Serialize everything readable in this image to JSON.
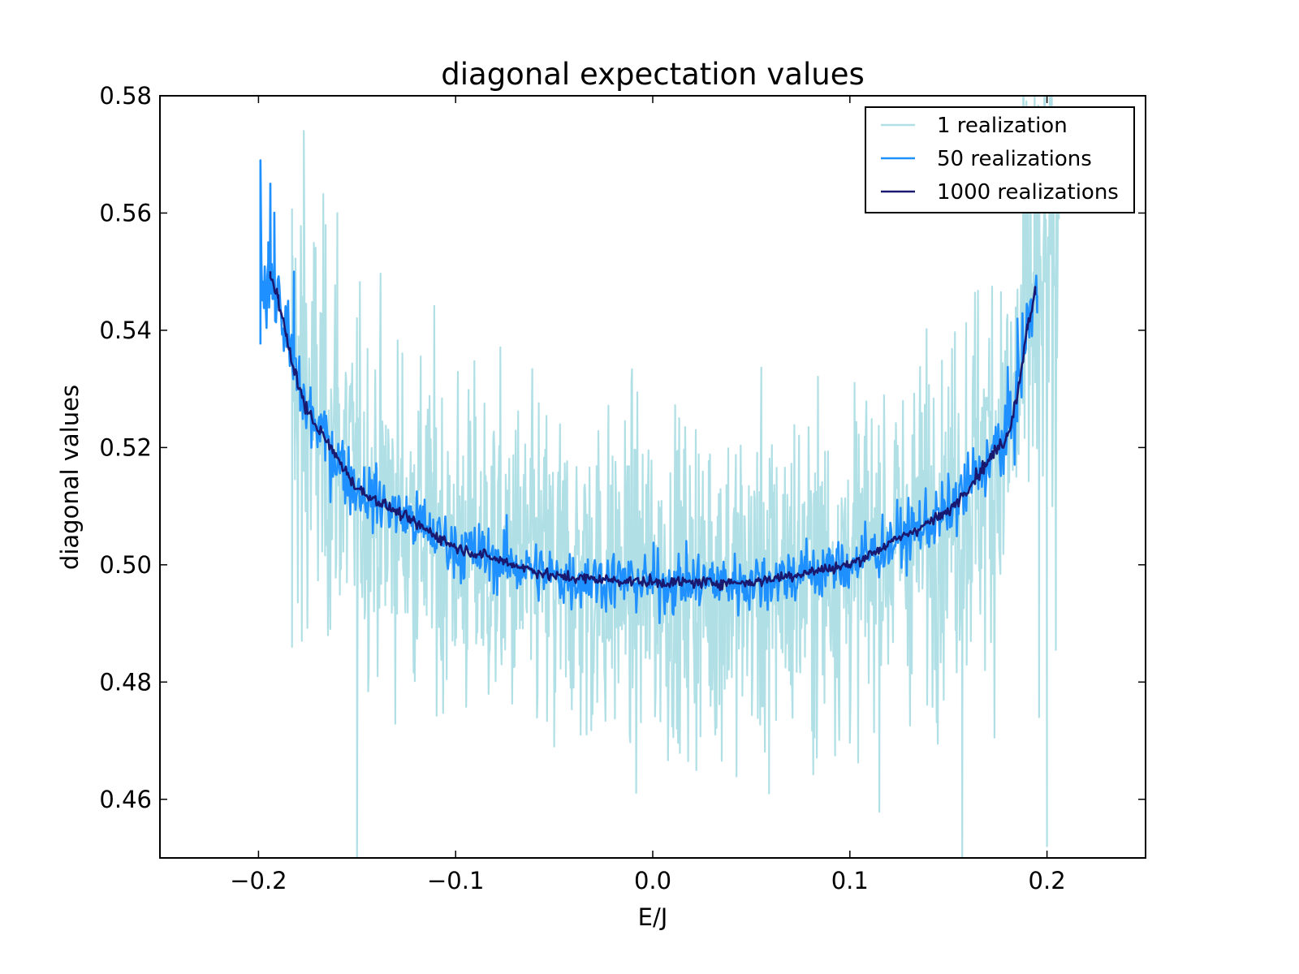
{
  "chart_data": {
    "type": "line",
    "title": "diagonal expectation values",
    "xlabel": "E/J",
    "ylabel": "diagonal values",
    "xlim": [
      -0.25,
      0.25
    ],
    "ylim": [
      0.45,
      0.58
    ],
    "xticks": [
      -0.2,
      -0.1,
      0.0,
      0.1,
      0.2
    ],
    "xtick_labels": [
      "−0.2",
      "−0.1",
      "0.0",
      "0.1",
      "0.2"
    ],
    "yticks": [
      0.46,
      0.48,
      0.5,
      0.52,
      0.54,
      0.56,
      0.58
    ],
    "ytick_labels": [
      "0.46",
      "0.48",
      "0.50",
      "0.52",
      "0.54",
      "0.56",
      "0.58"
    ],
    "grid": false,
    "legend_position": "top-right",
    "series": [
      {
        "name": "1 realization",
        "color": "#b0e0e6",
        "x_range": [
          -0.183,
          0.206
        ],
        "n_points": 1300,
        "noise_amplitude": 0.024,
        "points": [
          [
            -0.183,
            0.486
          ],
          [
            -0.178,
            0.487
          ],
          [
            -0.177,
            0.574
          ],
          [
            -0.175,
            0.502
          ],
          [
            -0.16,
            0.56
          ],
          [
            -0.15,
            0.45
          ],
          [
            -0.05,
            0.469
          ],
          [
            0.059,
            0.461
          ],
          [
            0.157,
            0.45
          ],
          [
            0.196,
            0.474
          ],
          [
            0.2,
            0.452
          ],
          [
            0.203,
            0.526
          ],
          [
            0.206,
            0.56
          ]
        ]
      },
      {
        "name": "50 realizations",
        "color": "#1e90ff",
        "x_range": [
          -0.199,
          0.195
        ],
        "n_points": 900,
        "noise_amplitude": 0.0045,
        "points": [
          [
            -0.199,
            0.569
          ],
          [
            -0.195,
            0.555
          ],
          [
            -0.194,
            0.565
          ],
          [
            -0.192,
            0.552
          ],
          [
            -0.186,
            0.541
          ],
          [
            -0.184,
            0.536
          ],
          [
            -0.182,
            0.55
          ],
          [
            -0.178,
            0.528
          ],
          [
            0.185,
            0.542
          ],
          [
            0.188,
            0.538
          ],
          [
            0.195,
            0.546
          ]
        ]
      },
      {
        "name": "1000 realizations",
        "color": "#191970",
        "x_range": [
          -0.194,
          0.194
        ],
        "n_points": 700,
        "noise_amplitude": 0.0008,
        "points": [
          [
            -0.194,
            0.549
          ],
          [
            -0.19,
            0.546
          ],
          [
            -0.186,
            0.539
          ],
          [
            -0.182,
            0.533
          ],
          [
            -0.175,
            0.526
          ],
          [
            -0.15,
            0.513
          ],
          [
            -0.1,
            0.503
          ],
          [
            -0.05,
            0.498
          ],
          [
            0.0,
            0.497
          ],
          [
            0.05,
            0.497
          ],
          [
            0.1,
            0.5
          ],
          [
            0.15,
            0.509
          ],
          [
            0.18,
            0.522
          ],
          [
            0.186,
            0.531
          ],
          [
            0.19,
            0.541
          ],
          [
            0.194,
            0.546
          ]
        ]
      }
    ]
  }
}
